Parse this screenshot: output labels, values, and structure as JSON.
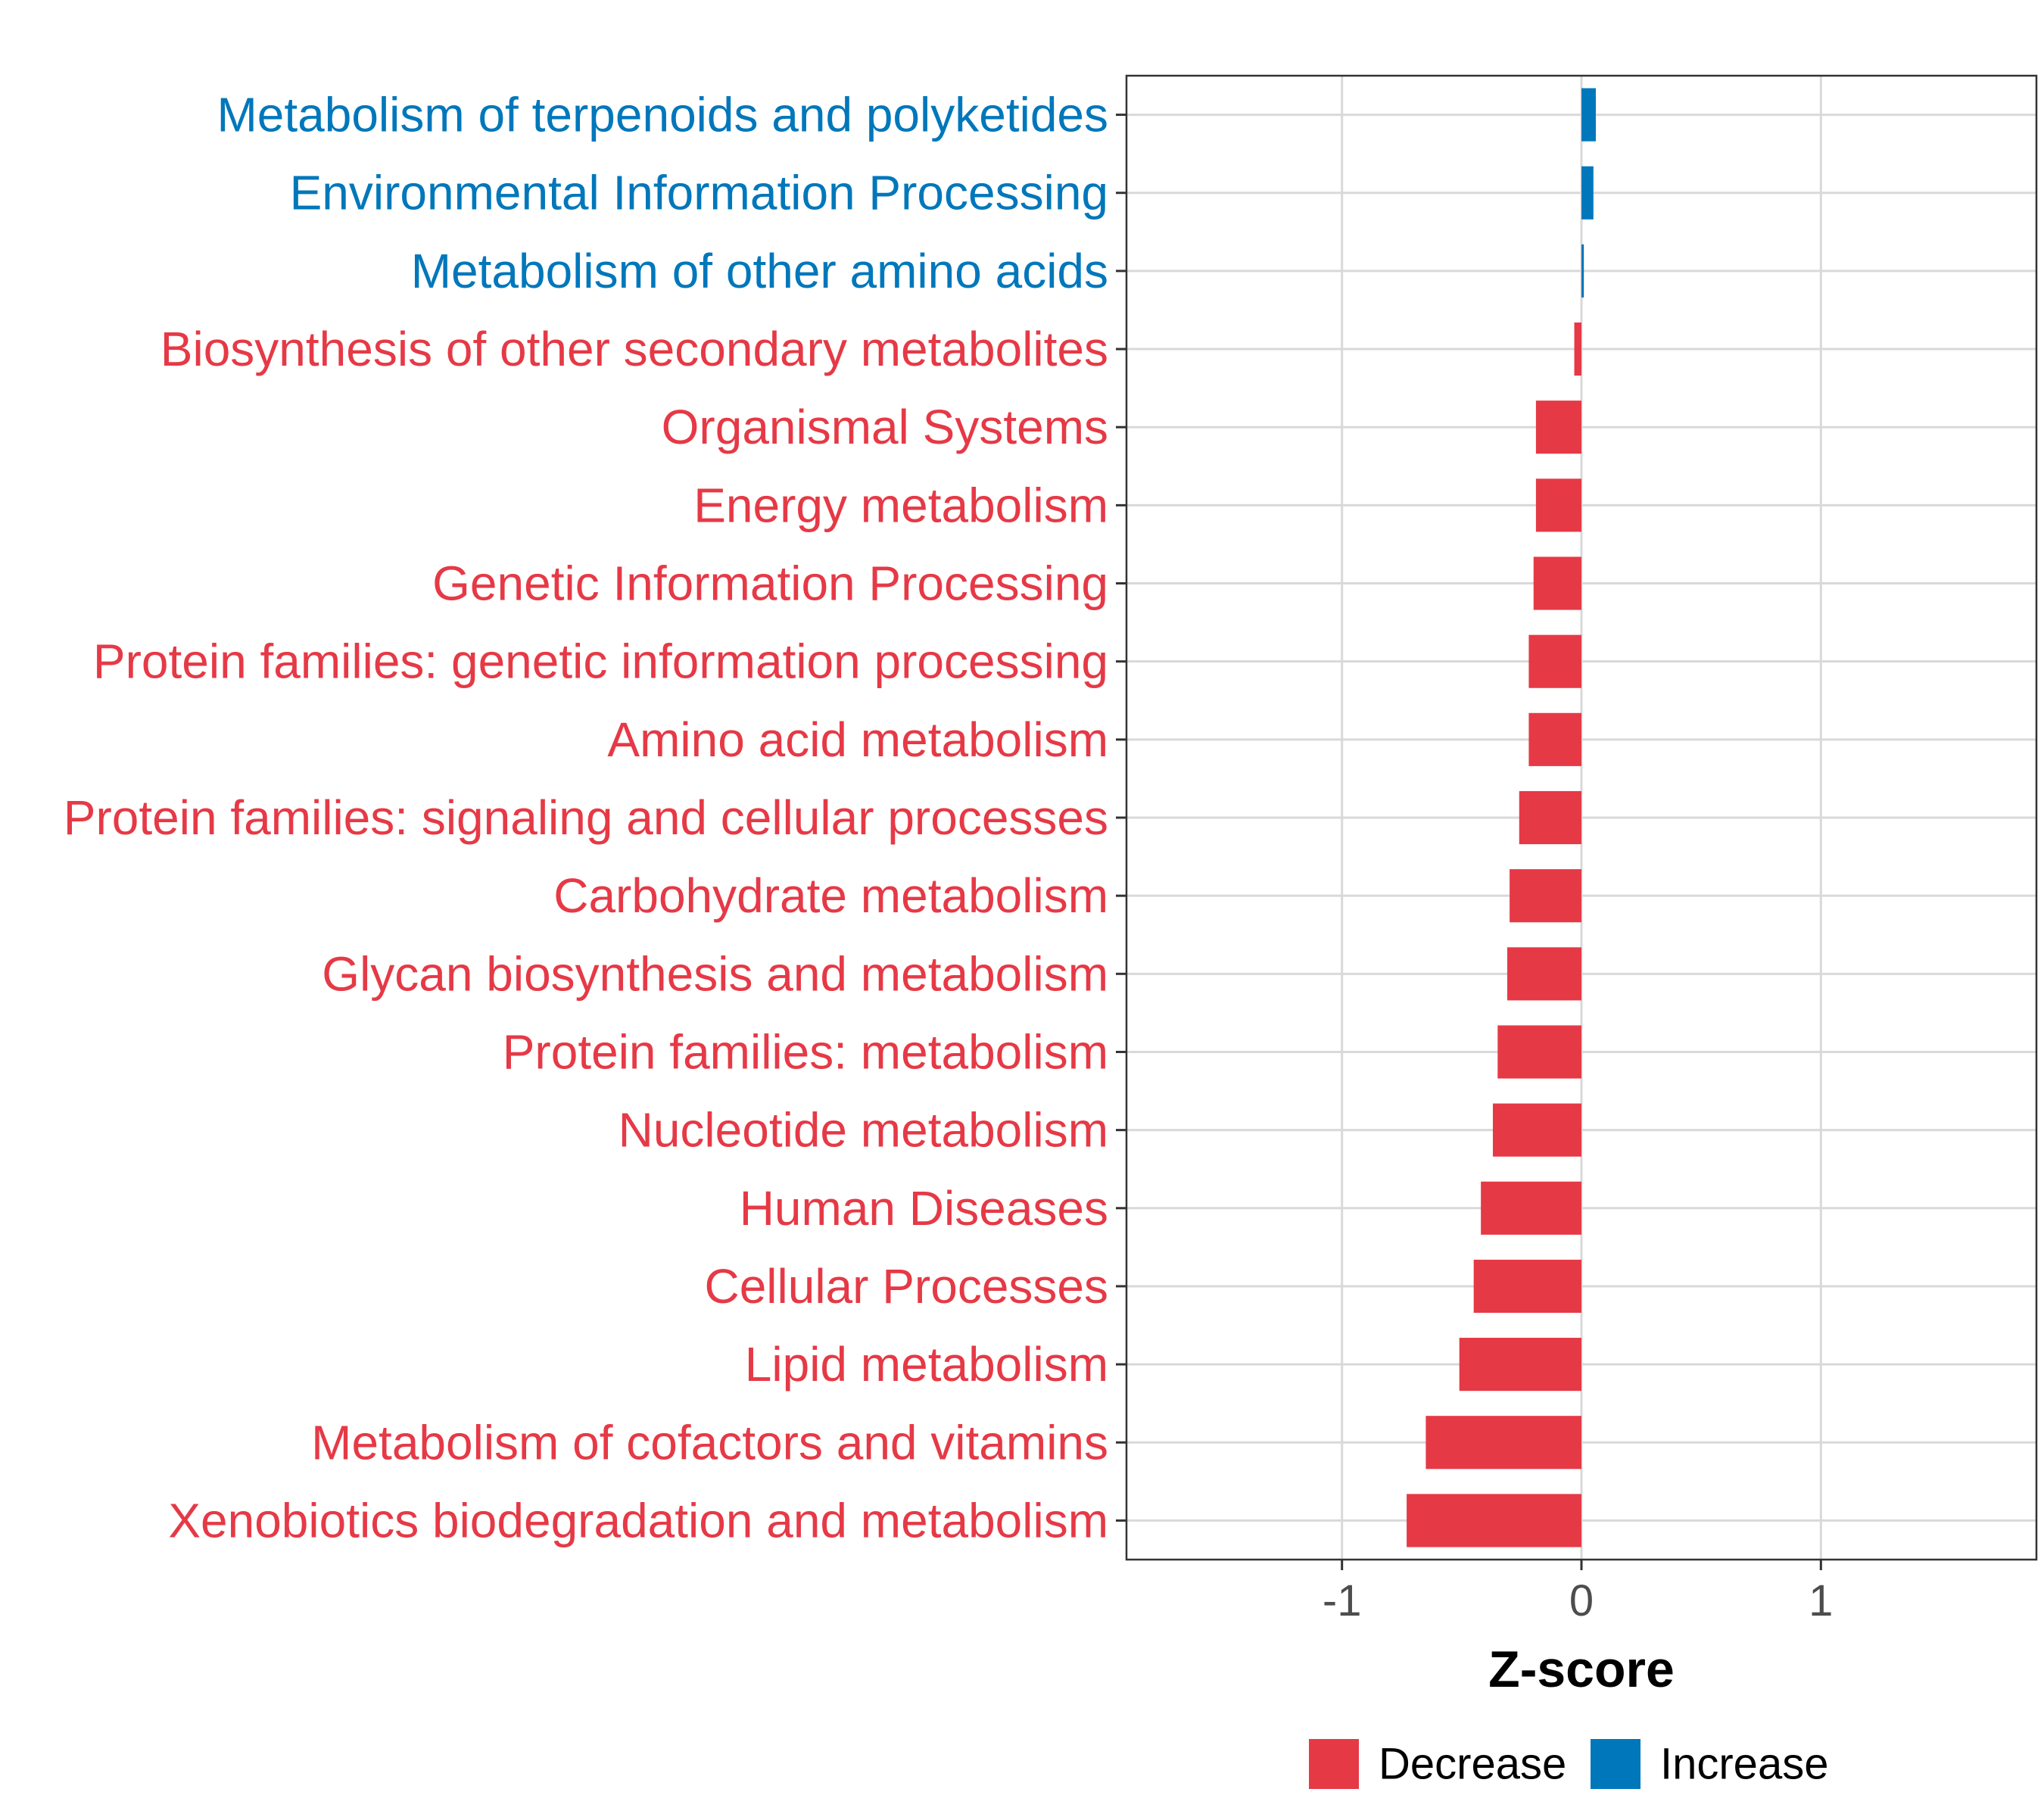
{
  "chart_data": {
    "type": "bar",
    "orientation": "horizontal",
    "title": "",
    "xlabel": "Z-score",
    "ylabel": "",
    "xlim": [
      -1.9,
      1.9
    ],
    "x_ticks": [
      -1,
      0,
      1
    ],
    "x_tick_labels": [
      "-1",
      "0",
      "1"
    ],
    "grid": true,
    "legend_position": "bottom",
    "categories": [
      "Metabolism of terpenoids and polyketides",
      "Environmental Information Processing",
      "Metabolism of other amino acids",
      "Biosynthesis of other secondary metabolites",
      "Organismal Systems",
      "Energy metabolism",
      "Genetic Information Processing",
      "Protein families: genetic information processing",
      "Amino acid metabolism",
      "Protein families: signaling and cellular processes",
      "Carbohydrate metabolism",
      "Glycan biosynthesis and metabolism",
      "Protein families: metabolism",
      "Nucleotide metabolism",
      "Human Diseases",
      "Cellular Processes",
      "Lipid metabolism",
      "Metabolism of cofactors and vitamins",
      "Xenobiotics biodegradation and metabolism"
    ],
    "values": [
      0.06,
      0.05,
      0.01,
      -0.03,
      -0.19,
      -0.19,
      -0.2,
      -0.22,
      -0.22,
      -0.26,
      -0.3,
      -0.31,
      -0.35,
      -0.37,
      -0.42,
      -0.45,
      -0.51,
      -0.65,
      -0.73
    ],
    "groups": [
      "Increase",
      "Increase",
      "Increase",
      "Decrease",
      "Decrease",
      "Decrease",
      "Decrease",
      "Decrease",
      "Decrease",
      "Decrease",
      "Decrease",
      "Decrease",
      "Decrease",
      "Decrease",
      "Decrease",
      "Decrease",
      "Decrease",
      "Decrease",
      "Decrease"
    ],
    "legend": [
      {
        "name": "Decrease",
        "color": "#E63946"
      },
      {
        "name": "Increase",
        "color": "#0077BB"
      }
    ]
  }
}
